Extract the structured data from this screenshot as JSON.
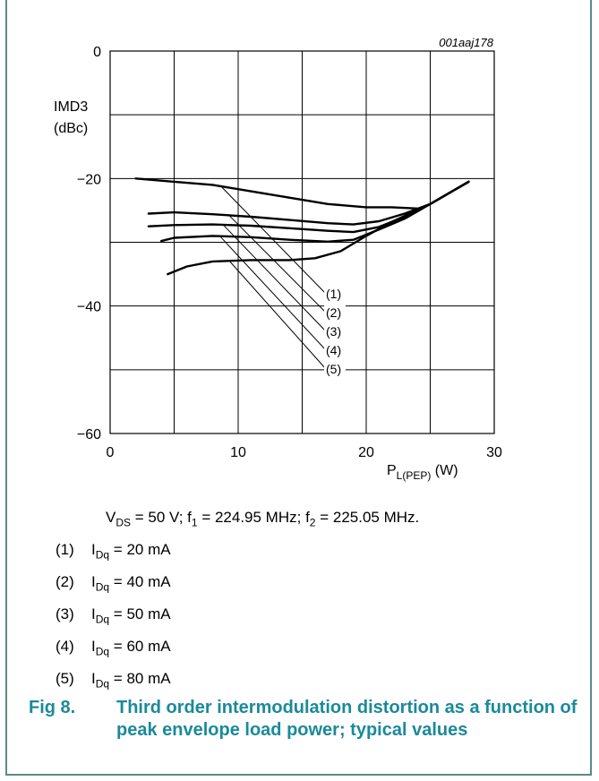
{
  "chart_data": {
    "type": "line",
    "figure_id": "001aaj178",
    "ylabel_line1": "IMD3",
    "ylabel_line2": "(dBc)",
    "xlabel_main": "P",
    "xlabel_sub": "L(PEP)",
    "xlabel_unit": "(W)",
    "xlim": [
      0,
      30
    ],
    "ylim": [
      -60,
      0
    ],
    "x_ticks": [
      "0",
      "10",
      "20",
      "30"
    ],
    "y_ticks": [
      "0",
      "−20",
      "−40",
      "−60"
    ],
    "grid": true,
    "series": [
      {
        "name": "(1)",
        "points": [
          [
            2,
            -20
          ],
          [
            5,
            -20.5
          ],
          [
            8,
            -21
          ],
          [
            11,
            -22
          ],
          [
            14,
            -23
          ],
          [
            17,
            -24
          ],
          [
            20,
            -24.5
          ],
          [
            22,
            -24.5
          ],
          [
            24,
            -24.7
          ]
        ]
      },
      {
        "name": "(2)",
        "points": [
          [
            3,
            -25.5
          ],
          [
            5,
            -25.3
          ],
          [
            8,
            -25.6
          ],
          [
            11,
            -26
          ],
          [
            14,
            -26.5
          ],
          [
            17,
            -27
          ],
          [
            19,
            -27.2
          ],
          [
            21,
            -26.7
          ],
          [
            23,
            -25.5
          ],
          [
            25,
            -24
          ],
          [
            28,
            -20.5
          ]
        ]
      },
      {
        "name": "(3)",
        "points": [
          [
            3,
            -27.5
          ],
          [
            5,
            -27.3
          ],
          [
            8,
            -27.2
          ],
          [
            11,
            -27.4
          ],
          [
            14,
            -27.8
          ],
          [
            17,
            -28.2
          ],
          [
            19,
            -28.4
          ],
          [
            21,
            -27.6
          ],
          [
            23,
            -26
          ],
          [
            25,
            -24
          ],
          [
            28,
            -20.5
          ]
        ]
      },
      {
        "name": "(4)",
        "points": [
          [
            4,
            -29.8
          ],
          [
            5,
            -29.3
          ],
          [
            8,
            -29
          ],
          [
            11,
            -29.2
          ],
          [
            14,
            -29.6
          ],
          [
            17,
            -29.9
          ],
          [
            19,
            -29.6
          ],
          [
            21,
            -28
          ],
          [
            23,
            -26.3
          ],
          [
            25,
            -24
          ],
          [
            28,
            -20.5
          ]
        ]
      },
      {
        "name": "(5)",
        "points": [
          [
            4.5,
            -35
          ],
          [
            6,
            -33.8
          ],
          [
            8,
            -33
          ],
          [
            11,
            -32.8
          ],
          [
            14,
            -32.8
          ],
          [
            16,
            -32.5
          ],
          [
            18,
            -31.4
          ],
          [
            20,
            -29
          ],
          [
            22,
            -26.8
          ],
          [
            25,
            -24
          ],
          [
            28,
            -20.5
          ]
        ]
      }
    ],
    "leader_start_points": [
      [
        8.6,
        -21.1
      ],
      [
        9.2,
        -25.6
      ],
      [
        8.8,
        -27.2
      ],
      [
        8.6,
        -29.1
      ],
      [
        9.3,
        -32.9
      ]
    ]
  },
  "conditions": {
    "vds": "V",
    "vds_sub": "DS",
    "vds_rest": " = 50 V; f",
    "f1_sub": "1",
    "f1_rest": " = 224.95 MHz; f",
    "f2_sub": "2",
    "f2_rest": " = 225.05 MHz."
  },
  "legend": [
    {
      "num": "(1)",
      "sym": "I",
      "sub": "Dq",
      "val": " = 20 mA"
    },
    {
      "num": "(2)",
      "sym": "I",
      "sub": "Dq",
      "val": " = 40 mA"
    },
    {
      "num": "(3)",
      "sym": "I",
      "sub": "Dq",
      "val": " = 50 mA"
    },
    {
      "num": "(4)",
      "sym": "I",
      "sub": "Dq",
      "val": " = 60 mA"
    },
    {
      "num": "(5)",
      "sym": "I",
      "sub": "Dq",
      "val": " = 80 mA"
    }
  ],
  "caption": {
    "fig": "Fig 8.",
    "text": "Third order intermodulation distortion as a function of peak envelope load power; typical values"
  },
  "colors": {
    "frame": "#5a8a8a",
    "caption": "#1a8a9a"
  }
}
